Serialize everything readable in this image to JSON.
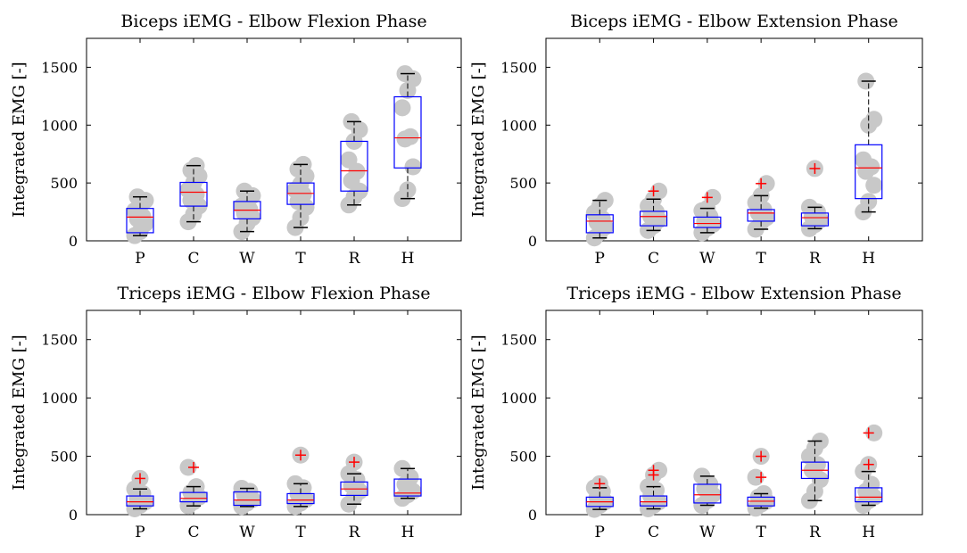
{
  "chart_data": [
    {
      "type": "box",
      "title": "Biceps iEMG - Elbow Flexion Phase",
      "ylabel": "Integrated EMG [-]",
      "xlabel": "",
      "ylim": [
        0,
        1750
      ],
      "yticks": [
        0,
        500,
        1000,
        1500
      ],
      "categories": [
        "P",
        "C",
        "W",
        "T",
        "R",
        "H"
      ],
      "boxes": [
        {
          "q1": 70,
          "median": 205,
          "q3": 280,
          "wlo": 45,
          "whi": 380,
          "outliers": [],
          "points": [
            45,
            80,
            150,
            190,
            210,
            260,
            300,
            350,
            380
          ]
        },
        {
          "q1": 300,
          "median": 420,
          "q3": 505,
          "wlo": 165,
          "whi": 650,
          "outliers": [],
          "points": [
            165,
            230,
            300,
            350,
            400,
            440,
            500,
            560,
            610,
            650
          ]
        },
        {
          "q1": 190,
          "median": 265,
          "q3": 340,
          "wlo": 80,
          "whi": 430,
          "outliers": [],
          "points": [
            80,
            150,
            200,
            240,
            270,
            300,
            340,
            390,
            430
          ]
        },
        {
          "q1": 315,
          "median": 410,
          "q3": 500,
          "wlo": 115,
          "whi": 660,
          "outliers": [],
          "points": [
            115,
            200,
            290,
            340,
            400,
            440,
            490,
            560,
            620,
            660
          ]
        },
        {
          "q1": 430,
          "median": 605,
          "q3": 860,
          "wlo": 310,
          "whi": 1030,
          "outliers": [],
          "points": [
            310,
            380,
            430,
            520,
            600,
            700,
            860,
            960,
            1030
          ]
        },
        {
          "q1": 630,
          "median": 890,
          "q3": 1245,
          "wlo": 365,
          "whi": 1445,
          "outliers": [],
          "points": [
            365,
            440,
            640,
            880,
            900,
            1150,
            1300,
            1400,
            1445
          ]
        }
      ]
    },
    {
      "type": "box",
      "title": "Biceps iEMG - Elbow Extension Phase",
      "ylabel": "Integrated EMG [-]",
      "xlabel": "",
      "ylim": [
        0,
        1750
      ],
      "yticks": [
        0,
        500,
        1000,
        1500
      ],
      "categories": [
        "P",
        "C",
        "W",
        "T",
        "R",
        "H"
      ],
      "boxes": [
        {
          "q1": 70,
          "median": 170,
          "q3": 225,
          "wlo": 25,
          "whi": 350,
          "outliers": [],
          "points": [
            25,
            70,
            120,
            160,
            190,
            240,
            300,
            350
          ]
        },
        {
          "q1": 130,
          "median": 210,
          "q3": 255,
          "wlo": 90,
          "whi": 360,
          "outliers": [
            430
          ],
          "points": [
            90,
            130,
            180,
            210,
            250,
            300,
            360,
            430
          ]
        },
        {
          "q1": 115,
          "median": 150,
          "q3": 205,
          "wlo": 70,
          "whi": 280,
          "outliers": [
            375
          ],
          "points": [
            70,
            110,
            140,
            170,
            210,
            260,
            280,
            375
          ]
        },
        {
          "q1": 170,
          "median": 240,
          "q3": 270,
          "wlo": 100,
          "whi": 390,
          "outliers": [
            495
          ],
          "points": [
            100,
            160,
            200,
            240,
            270,
            330,
            390,
            495
          ]
        },
        {
          "q1": 130,
          "median": 200,
          "q3": 240,
          "wlo": 105,
          "whi": 290,
          "outliers": [
            625
          ],
          "points": [
            105,
            140,
            180,
            210,
            250,
            290,
            625
          ]
        },
        {
          "q1": 365,
          "median": 630,
          "q3": 830,
          "wlo": 250,
          "whi": 1380,
          "outliers": [],
          "points": [
            250,
            340,
            480,
            600,
            640,
            700,
            1000,
            1050,
            1380
          ]
        }
      ]
    },
    {
      "type": "box",
      "title": "Triceps iEMG - Elbow Flexion Phase",
      "ylabel": "Integrated EMG [-]",
      "xlabel": "",
      "ylim": [
        0,
        1750
      ],
      "yticks": [
        0,
        500,
        1000,
        1500
      ],
      "categories": [
        "P",
        "C",
        "W",
        "T",
        "R",
        "H"
      ],
      "boxes": [
        {
          "q1": 75,
          "median": 110,
          "q3": 160,
          "wlo": 50,
          "whi": 220,
          "outliers": [
            310
          ],
          "points": [
            50,
            80,
            110,
            140,
            180,
            220,
            310
          ]
        },
        {
          "q1": 110,
          "median": 140,
          "q3": 190,
          "wlo": 75,
          "whi": 240,
          "outliers": [
            405
          ],
          "points": [
            75,
            110,
            150,
            190,
            240,
            405
          ]
        },
        {
          "q1": 80,
          "median": 125,
          "q3": 195,
          "wlo": 70,
          "whi": 225,
          "outliers": [],
          "points": [
            70,
            100,
            130,
            170,
            200,
            225
          ]
        },
        {
          "q1": 95,
          "median": 125,
          "q3": 180,
          "wlo": 70,
          "whi": 265,
          "outliers": [
            510
          ],
          "points": [
            70,
            100,
            130,
            180,
            230,
            265,
            510
          ]
        },
        {
          "q1": 165,
          "median": 220,
          "q3": 280,
          "wlo": 90,
          "whi": 350,
          "outliers": [
            450
          ],
          "points": [
            90,
            150,
            200,
            250,
            300,
            350,
            450
          ]
        },
        {
          "q1": 160,
          "median": 185,
          "q3": 305,
          "wlo": 140,
          "whi": 395,
          "outliers": [],
          "points": [
            140,
            170,
            200,
            260,
            320,
            395
          ]
        }
      ]
    },
    {
      "type": "box",
      "title": "Triceps iEMG - Elbow Extension Phase",
      "ylabel": "Integrated EMG [-]",
      "xlabel": "",
      "ylim": [
        0,
        1750
      ],
      "yticks": [
        0,
        500,
        1000,
        1500
      ],
      "categories": [
        "P",
        "C",
        "W",
        "T",
        "R",
        "H"
      ],
      "boxes": [
        {
          "q1": 70,
          "median": 110,
          "q3": 150,
          "wlo": 45,
          "whi": 230,
          "outliers": [
            265
          ],
          "points": [
            45,
            80,
            110,
            150,
            200,
            230,
            265
          ]
        },
        {
          "q1": 75,
          "median": 110,
          "q3": 160,
          "wlo": 50,
          "whi": 240,
          "outliers": [
            340,
            380
          ],
          "points": [
            50,
            80,
            110,
            160,
            210,
            240,
            340,
            380
          ]
        },
        {
          "q1": 100,
          "median": 170,
          "q3": 260,
          "wlo": 80,
          "whi": 330,
          "outliers": [],
          "points": [
            80,
            120,
            170,
            220,
            260,
            330
          ]
        },
        {
          "q1": 75,
          "median": 115,
          "q3": 150,
          "wlo": 55,
          "whi": 180,
          "outliers": [
            320,
            500
          ],
          "points": [
            55,
            90,
            115,
            150,
            180,
            320,
            500
          ]
        },
        {
          "q1": 310,
          "median": 380,
          "q3": 450,
          "wlo": 120,
          "whi": 630,
          "outliers": [],
          "points": [
            120,
            200,
            300,
            380,
            430,
            500,
            570,
            630
          ]
        },
        {
          "q1": 110,
          "median": 150,
          "q3": 230,
          "wlo": 80,
          "whi": 370,
          "outliers": [
            430,
            700
          ],
          "points": [
            80,
            120,
            150,
            200,
            260,
            370,
            430,
            700
          ]
        }
      ]
    }
  ],
  "colors": {
    "box": "#0000ff",
    "median": "#ff0000",
    "outlier": "#ff0000",
    "whisker": "#000000",
    "points": "#c8c8c8",
    "axes": "#000000"
  }
}
